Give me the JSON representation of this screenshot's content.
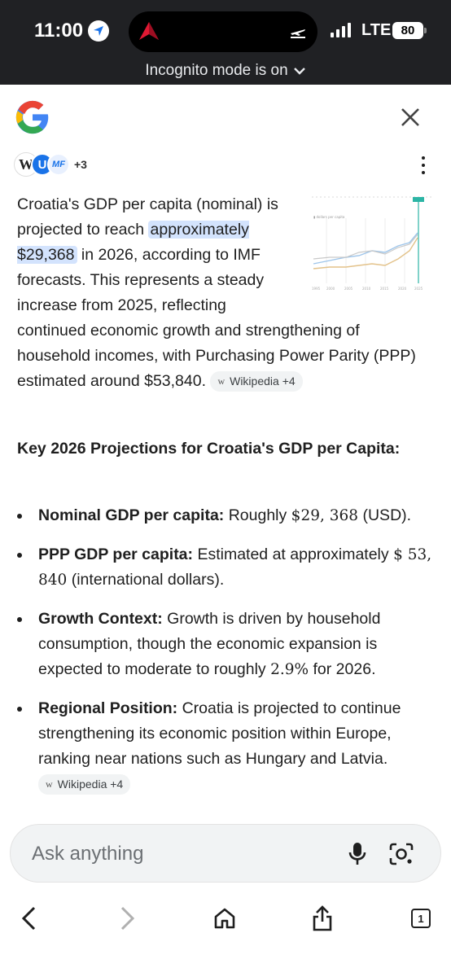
{
  "status_bar": {
    "time": "11:00",
    "network": "LTE",
    "battery": "80",
    "incognito_text": "Incognito mode is on"
  },
  "sources": {
    "more_count": "+3",
    "icons": [
      "wikipedia-icon",
      "source-u-icon",
      "imf-icon"
    ],
    "icon_letters": {
      "wikipedia": "W",
      "u": "U",
      "imf": "MF"
    }
  },
  "answer": {
    "part1": "Croatia's GDP per capita (nominal) is projected to reach ",
    "highlight": "approximately $29,368",
    "part2": " in 2026, according to IMF forecasts. This represents a steady increase from 2025, reflecting continued economic growth and strengthening of household incomes, with Purchasing Power Parity (PPP) estimated around $53,840.",
    "citation": {
      "letter": "w",
      "label": "Wikipedia +4"
    }
  },
  "heading": "Key 2026 Projections for Croatia's GDP per Capita:",
  "bullets": [
    {
      "term": "Nominal GDP per capita:",
      "pre": " Roughly ",
      "math": "$29, 368",
      "post": " (USD)."
    },
    {
      "term": "PPP GDP per capita:",
      "pre": " Estimated at approximately ",
      "math": "$ 53, 840",
      "post": " (international dollars)."
    },
    {
      "term": "Growth Context:",
      "pre": " Growth is driven by household consumption, though the economic expansion is expected to moderate to roughly ",
      "math": "2.9%",
      "post": " for 2026."
    },
    {
      "term": "Regional Position:",
      "pre": " Croatia is projected to continue strengthening its economic position within Europe, ranking near nations such as Hungary and Latvia. ",
      "math": "",
      "post": ""
    }
  ],
  "last_citation": {
    "letter": "w",
    "label": "Wikipedia +4"
  },
  "ask": {
    "placeholder": "Ask anything"
  },
  "colors": {
    "highlight": "#d3e3fd",
    "status_bg": "#202124",
    "google_blue": "#4285F4",
    "google_red": "#EA4335",
    "google_yellow": "#FBBC05",
    "google_green": "#34A853"
  }
}
